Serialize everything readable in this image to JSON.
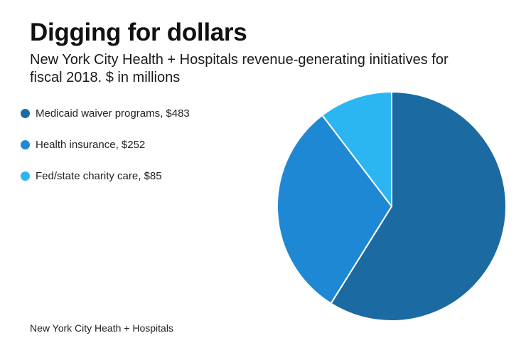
{
  "title": "Digging for dollars",
  "subtitle": "New York City Health + Hospitals revenue-generating initiatives for fiscal 2018. $ in millions",
  "source": "New York City Heath + Hospitals",
  "legend_items": [
    {
      "label": "Medicaid waiver programs, $483",
      "color": "#1c6aa2"
    },
    {
      "label": "Health insurance, $252",
      "color": "#1f88d4"
    },
    {
      "label": "Fed/state charity care, $85",
      "color": "#2bb6f2"
    }
  ],
  "chart_data": {
    "type": "pie",
    "title": "Digging for dollars",
    "subtitle": "New York City Health + Hospitals revenue-generating initiatives for fiscal 2018. $ in millions",
    "unit": "$ millions",
    "categories": [
      "Medicaid waiver programs",
      "Health insurance",
      "Fed/state charity care"
    ],
    "values": [
      483,
      252,
      85
    ],
    "colors": [
      "#1c6aa2",
      "#1f88d4",
      "#2bb6f2"
    ],
    "start_angle_deg": 0,
    "direction": "clockwise",
    "legend_position": "left"
  }
}
